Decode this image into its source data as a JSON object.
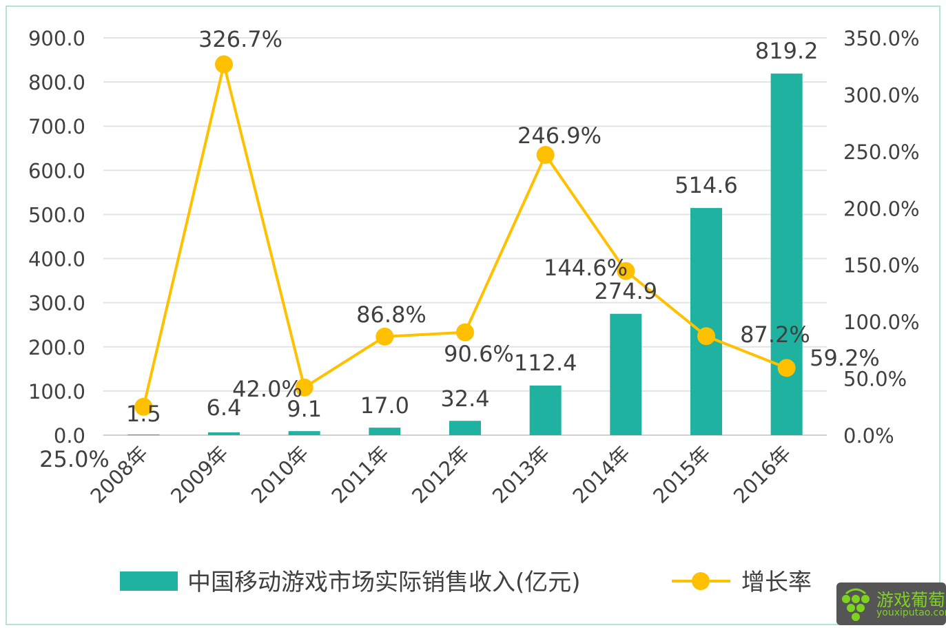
{
  "chart_data": {
    "type": "bar+line",
    "categories": [
      "2008年",
      "2009年",
      "2010年",
      "2011年",
      "2012年",
      "2013年",
      "2014年",
      "2015年",
      "2016年"
    ],
    "series": [
      {
        "name": "中国移动游戏市场实际销售收入(亿元)",
        "type": "bar",
        "axis": "left",
        "color": "#20B2A0",
        "values": [
          1.5,
          6.4,
          9.1,
          17.0,
          32.4,
          112.4,
          274.9,
          514.6,
          819.2
        ],
        "labels": [
          "1.5",
          "6.4",
          "9.1",
          "17.0",
          "32.4",
          "112.4",
          "274.9",
          "514.6",
          "819.2"
        ]
      },
      {
        "name": "增长率",
        "type": "line",
        "axis": "right",
        "color": "#FFC000",
        "values": [
          25.0,
          326.7,
          42.0,
          86.8,
          90.6,
          246.9,
          144.6,
          87.2,
          59.2
        ],
        "labels": [
          "25.0%",
          "326.7%",
          "42.0%",
          "86.8%",
          "90.6%",
          "246.9%",
          "144.6%",
          "87.2%",
          "59.2%"
        ]
      }
    ],
    "y_left": {
      "range": [
        0,
        900
      ],
      "ticks": [
        "0.0",
        "100.0",
        "200.0",
        "300.0",
        "400.0",
        "500.0",
        "600.0",
        "700.0",
        "800.0",
        "900.0"
      ]
    },
    "y_right": {
      "range": [
        0,
        350
      ],
      "ticks": [
        "0.0%",
        "50.0%",
        "100.0%",
        "150.0%",
        "200.0%",
        "250.0%",
        "300.0%",
        "350.0%"
      ]
    },
    "grid": true,
    "legend_placement": "bottom"
  },
  "watermark": {
    "name": "游戏葡萄",
    "url": "youxiputao.com"
  }
}
